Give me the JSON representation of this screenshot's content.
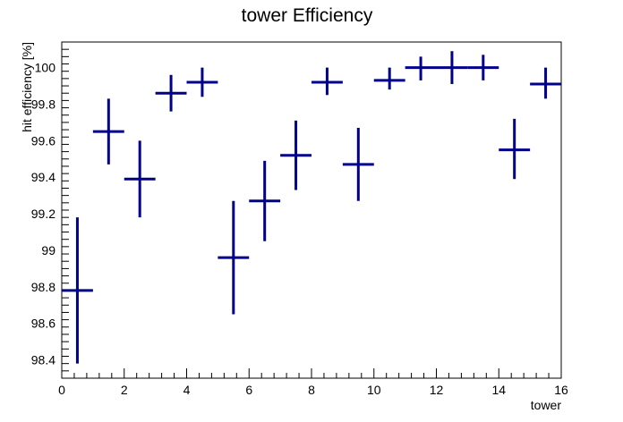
{
  "chart_data": {
    "type": "scatter",
    "title": "tower Efficiency",
    "xlabel": "tower",
    "ylabel": "hit efficiency [%]",
    "xlim": [
      0,
      16
    ],
    "ylim": [
      98.3,
      100.14
    ],
    "xticks": [
      0,
      2,
      4,
      6,
      8,
      10,
      12,
      14,
      16
    ],
    "yticks": [
      98.4,
      98.6,
      98.8,
      99,
      99.2,
      99.4,
      99.6,
      99.8,
      100
    ],
    "xtick_labels": [
      "0",
      "2",
      "4",
      "6",
      "8",
      "10",
      "12",
      "14",
      "16"
    ],
    "ytick_labels": [
      "98.4",
      "98.6",
      "98.8",
      "99",
      "99.2",
      "99.4",
      "99.6",
      "99.8",
      "100"
    ],
    "grid": false,
    "marker_color": "#00008b",
    "points": [
      {
        "x": 0.5,
        "y": 98.78,
        "xerr": 0.5,
        "ylow": 98.38,
        "yhigh": 99.18
      },
      {
        "x": 1.5,
        "y": 99.65,
        "xerr": 0.5,
        "ylow": 99.47,
        "yhigh": 99.83
      },
      {
        "x": 2.5,
        "y": 99.39,
        "xerr": 0.5,
        "ylow": 99.18,
        "yhigh": 99.6
      },
      {
        "x": 3.5,
        "y": 99.86,
        "xerr": 0.5,
        "ylow": 99.76,
        "yhigh": 99.96
      },
      {
        "x": 4.5,
        "y": 99.92,
        "xerr": 0.5,
        "ylow": 99.84,
        "yhigh": 100.0
      },
      {
        "x": 5.5,
        "y": 98.96,
        "xerr": 0.5,
        "ylow": 98.65,
        "yhigh": 99.27
      },
      {
        "x": 6.5,
        "y": 99.27,
        "xerr": 0.5,
        "ylow": 99.05,
        "yhigh": 99.49
      },
      {
        "x": 7.5,
        "y": 99.52,
        "xerr": 0.5,
        "ylow": 99.33,
        "yhigh": 99.71
      },
      {
        "x": 8.5,
        "y": 99.92,
        "xerr": 0.5,
        "ylow": 99.85,
        "yhigh": 100.0
      },
      {
        "x": 9.5,
        "y": 99.47,
        "xerr": 0.5,
        "ylow": 99.27,
        "yhigh": 99.67
      },
      {
        "x": 10.5,
        "y": 99.93,
        "xerr": 0.5,
        "ylow": 99.88,
        "yhigh": 100.0
      },
      {
        "x": 11.5,
        "y": 100.0,
        "xerr": 0.5,
        "ylow": 99.93,
        "yhigh": 100.06
      },
      {
        "x": 12.5,
        "y": 100.0,
        "xerr": 0.5,
        "ylow": 99.91,
        "yhigh": 100.09
      },
      {
        "x": 13.5,
        "y": 100.0,
        "xerr": 0.5,
        "ylow": 99.93,
        "yhigh": 100.07
      },
      {
        "x": 14.5,
        "y": 99.55,
        "xerr": 0.5,
        "ylow": 99.39,
        "yhigh": 99.72
      },
      {
        "x": 15.5,
        "y": 99.91,
        "xerr": 0.5,
        "ylow": 99.83,
        "yhigh": 100.0
      }
    ]
  }
}
